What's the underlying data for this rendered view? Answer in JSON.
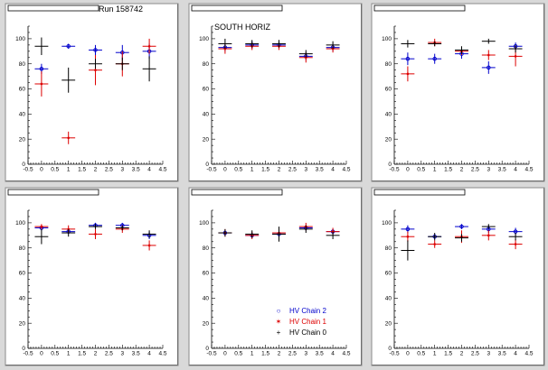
{
  "window": {
    "background": "#d9d9d9"
  },
  "colors": {
    "chain2": "#0000cc",
    "chain1": "#dd0000",
    "chain0": "#000000"
  },
  "chart_data": [
    {
      "type": "scatter",
      "title": "",
      "pad_title": "",
      "annotation": "Run 158742",
      "xlim": [
        -0.5,
        4.5
      ],
      "ylim": [
        0,
        110
      ],
      "xticks": [
        -0.5,
        0,
        0.5,
        1,
        1.5,
        2,
        2.5,
        3,
        3.5,
        4,
        4.5
      ],
      "yticks": [
        0,
        20,
        40,
        60,
        80,
        100
      ],
      "grid": false,
      "series": [
        {
          "key": "chain2",
          "x": [
            0,
            1,
            2,
            3,
            4
          ],
          "y": [
            76,
            94,
            91,
            89,
            90
          ],
          "yerr": [
            4,
            2,
            4,
            6,
            6
          ]
        },
        {
          "key": "chain1",
          "x": [
            0,
            1,
            2,
            3,
            4
          ],
          "y": [
            64,
            21,
            75,
            80,
            94
          ],
          "yerr": [
            10,
            5,
            12,
            10,
            6
          ]
        },
        {
          "key": "chain0",
          "x": [
            0,
            1,
            2,
            3,
            4
          ],
          "y": [
            94,
            67,
            80,
            80,
            76
          ],
          "yerr": [
            7,
            10,
            4,
            5,
            10
          ]
        }
      ]
    },
    {
      "type": "scatter",
      "title": "",
      "pad_title": "",
      "annotation": "SOUTH HORIZ",
      "xlim": [
        -0.5,
        4.5
      ],
      "ylim": [
        0,
        110
      ],
      "xticks": [
        -0.5,
        0,
        0.5,
        1,
        1.5,
        2,
        2.5,
        3,
        3.5,
        4,
        4.5
      ],
      "yticks": [
        0,
        20,
        40,
        60,
        80,
        100
      ],
      "grid": false,
      "series": [
        {
          "key": "chain2",
          "x": [
            0,
            1,
            2,
            3,
            4
          ],
          "y": [
            93,
            95,
            95,
            86,
            93
          ],
          "yerr": [
            3,
            3,
            3,
            3,
            3
          ]
        },
        {
          "key": "chain1",
          "x": [
            0,
            1,
            2,
            3,
            4
          ],
          "y": [
            92,
            94,
            94,
            85,
            92
          ],
          "yerr": [
            4,
            3,
            3,
            4,
            3
          ]
        },
        {
          "key": "chain0",
          "x": [
            0,
            1,
            2,
            3,
            4
          ],
          "y": [
            96,
            96,
            96,
            88,
            95
          ],
          "yerr": [
            4,
            3,
            3,
            3,
            3
          ]
        }
      ]
    },
    {
      "type": "scatter",
      "title": "",
      "pad_title": "",
      "annotation": "",
      "xlim": [
        -0.5,
        4.5
      ],
      "ylim": [
        0,
        110
      ],
      "xticks": [
        -0.5,
        0,
        0.5,
        1,
        1.5,
        2,
        2.5,
        3,
        3.5,
        4,
        4.5
      ],
      "yticks": [
        0,
        20,
        40,
        60,
        80,
        100
      ],
      "grid": false,
      "series": [
        {
          "key": "chain2",
          "x": [
            0,
            1,
            2,
            3,
            4
          ],
          "y": [
            84,
            84,
            88,
            77,
            94
          ],
          "yerr": [
            5,
            4,
            4,
            5,
            3
          ]
        },
        {
          "key": "chain1",
          "x": [
            0,
            1,
            2,
            3,
            4
          ],
          "y": [
            72,
            97,
            90,
            87,
            86
          ],
          "yerr": [
            6,
            3,
            3,
            4,
            8
          ]
        },
        {
          "key": "chain0",
          "x": [
            0,
            1,
            2,
            3,
            4
          ],
          "y": [
            96,
            96,
            91,
            98,
            92
          ],
          "yerr": [
            3,
            2,
            3,
            2,
            3
          ]
        }
      ]
    },
    {
      "type": "scatter",
      "title": "",
      "pad_title": "",
      "annotation": "",
      "xlim": [
        -0.5,
        4.5
      ],
      "ylim": [
        0,
        110
      ],
      "xticks": [
        -0.5,
        0,
        0.5,
        1,
        1.5,
        2,
        2.5,
        3,
        3.5,
        4,
        4.5
      ],
      "yticks": [
        0,
        20,
        40,
        60,
        80,
        100
      ],
      "grid": false,
      "series": [
        {
          "key": "chain2",
          "x": [
            0,
            1,
            2,
            3,
            4
          ],
          "y": [
            96,
            93,
            98,
            98,
            90
          ],
          "yerr": [
            2,
            2,
            2,
            2,
            3
          ]
        },
        {
          "key": "chain1",
          "x": [
            0,
            1,
            2,
            3,
            4
          ],
          "y": [
            97,
            95,
            91,
            95,
            82
          ],
          "yerr": [
            2,
            3,
            4,
            3,
            4
          ]
        },
        {
          "key": "chain0",
          "x": [
            0,
            1,
            2,
            3,
            4
          ],
          "y": [
            89,
            92,
            97,
            96,
            91
          ],
          "yerr": [
            6,
            3,
            2,
            2,
            3
          ]
        }
      ]
    },
    {
      "type": "scatter",
      "title": "",
      "pad_title": "",
      "annotation": "",
      "xlim": [
        -0.5,
        4.5
      ],
      "ylim": [
        0,
        110
      ],
      "xticks": [
        -0.5,
        0,
        0.5,
        1,
        1.5,
        2,
        2.5,
        3,
        3.5,
        4,
        4.5
      ],
      "yticks": [
        0,
        20,
        40,
        60,
        80,
        100
      ],
      "grid": false,
      "legend": {
        "placement": "bottom-right",
        "entries": [
          {
            "key": "chain2",
            "label": "HV Chain 2",
            "marker": "○"
          },
          {
            "key": "chain1",
            "label": "HV Chain 1",
            "marker": "✶"
          },
          {
            "key": "chain0",
            "label": "HV Chain 0",
            "marker": "+"
          }
        ]
      },
      "series": [
        {
          "key": "chain2",
          "x": [
            0,
            1,
            2,
            3,
            4
          ],
          "y": [
            92,
            90,
            91,
            96,
            93
          ],
          "yerr": [
            2,
            2,
            2,
            2,
            2
          ]
        },
        {
          "key": "chain1",
          "x": [
            0,
            1,
            2,
            3,
            4
          ],
          "y": [
            92,
            90,
            92,
            97,
            93
          ],
          "yerr": [
            3,
            3,
            3,
            3,
            3
          ]
        },
        {
          "key": "chain0",
          "x": [
            0,
            1,
            2,
            3,
            4
          ],
          "y": [
            92,
            91,
            91,
            95,
            90
          ],
          "yerr": [
            3,
            3,
            6,
            3,
            3
          ]
        }
      ]
    },
    {
      "type": "scatter",
      "title": "",
      "pad_title": "",
      "annotation": "",
      "xlim": [
        -0.5,
        4.5
      ],
      "ylim": [
        0,
        110
      ],
      "xticks": [
        -0.5,
        0,
        0.5,
        1,
        1.5,
        2,
        2.5,
        3,
        3.5,
        4,
        4.5
      ],
      "yticks": [
        0,
        20,
        40,
        60,
        80,
        100
      ],
      "grid": false,
      "series": [
        {
          "key": "chain2",
          "x": [
            0,
            1,
            2,
            3,
            4
          ],
          "y": [
            95,
            89,
            97,
            95,
            93
          ],
          "yerr": [
            3,
            2,
            2,
            3,
            3
          ]
        },
        {
          "key": "chain1",
          "x": [
            0,
            1,
            2,
            3,
            4
          ],
          "y": [
            89,
            83,
            89,
            90,
            83
          ],
          "yerr": [
            4,
            3,
            5,
            4,
            4
          ]
        },
        {
          "key": "chain0",
          "x": [
            0,
            1,
            2,
            3,
            4
          ],
          "y": [
            78,
            89,
            88,
            97,
            89
          ],
          "yerr": [
            8,
            3,
            3,
            2,
            3
          ]
        }
      ]
    }
  ]
}
